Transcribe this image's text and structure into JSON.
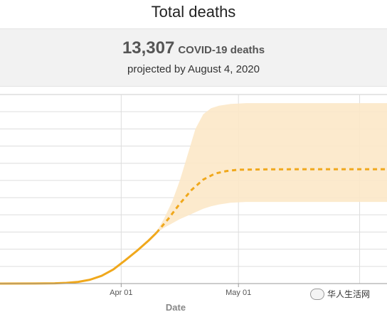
{
  "header": {
    "title": "Total deaths"
  },
  "banner": {
    "count": "13,307",
    "unit": "COVID-19 deaths",
    "subtitle": "projected by August 4, 2020"
  },
  "watermark": {
    "text": "华人生活网"
  },
  "colors": {
    "line": "#f0a81c",
    "band": "#fce8c8",
    "grid": "#dddddd",
    "banner_bg": "#f2f2f2"
  },
  "chart_data": {
    "type": "line",
    "xlabel": "Date",
    "ylabel": "",
    "x_ticks": [
      {
        "label": "Apr 01",
        "date": "2020-04-01"
      },
      {
        "label": "May 01",
        "date": "2020-05-01"
      }
    ],
    "xlim": [
      "2020-03-01",
      "2020-06-08"
    ],
    "ylim": [
      0,
      22000
    ],
    "grid": true,
    "series": [
      {
        "style": "solid",
        "points": [
          [
            "2020-03-01",
            0
          ],
          [
            "2020-03-10",
            10
          ],
          [
            "2020-03-15",
            30
          ],
          [
            "2020-03-18",
            80
          ],
          [
            "2020-03-21",
            200
          ],
          [
            "2020-03-24",
            450
          ],
          [
            "2020-03-27",
            900
          ],
          [
            "2020-03-30",
            1650
          ],
          [
            "2020-04-02",
            2700
          ],
          [
            "2020-04-05",
            3800
          ],
          [
            "2020-04-08",
            5000
          ],
          [
            "2020-04-10",
            5900
          ]
        ]
      },
      {
        "style": "dashed",
        "points": [
          [
            "2020-04-10",
            5900
          ],
          [
            "2020-04-13",
            7500
          ],
          [
            "2020-04-16",
            9300
          ],
          [
            "2020-04-19",
            10900
          ],
          [
            "2020-04-22",
            12100
          ],
          [
            "2020-04-25",
            12800
          ],
          [
            "2020-04-28",
            13100
          ],
          [
            "2020-05-01",
            13250
          ],
          [
            "2020-05-10",
            13300
          ],
          [
            "2020-06-08",
            13307
          ]
        ]
      }
    ],
    "uncertainty_band": [
      [
        "2020-04-10",
        5900,
        6000
      ],
      [
        "2020-04-12",
        6500,
        7600
      ],
      [
        "2020-04-14",
        7000,
        9500
      ],
      [
        "2020-04-16",
        7500,
        12000
      ],
      [
        "2020-04-18",
        7900,
        15000
      ],
      [
        "2020-04-20",
        8300,
        18000
      ],
      [
        "2020-04-22",
        8700,
        19700
      ],
      [
        "2020-04-24",
        9000,
        20400
      ],
      [
        "2020-04-26",
        9200,
        20700
      ],
      [
        "2020-04-29",
        9400,
        20900
      ],
      [
        "2020-05-03",
        9500,
        21000
      ],
      [
        "2020-06-08",
        9500,
        21000
      ]
    ]
  }
}
